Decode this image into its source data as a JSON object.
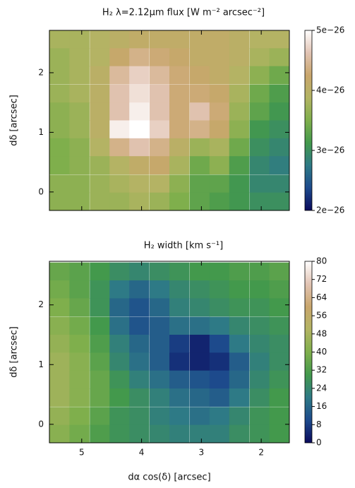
{
  "chart_data": [
    {
      "type": "heatmap",
      "title": "H₂ λ=2.12μm flux [W m⁻² arcsec⁻²]",
      "ylabel": "dδ [arcsec]",
      "show_xticklabels": false,
      "x": [
        5.37,
        5.04,
        4.7,
        4.37,
        4.04,
        3.7,
        3.37,
        3.03,
        2.7,
        2.37,
        2.03,
        1.7
      ],
      "y": [
        2.56,
        2.26,
        1.96,
        1.65,
        1.35,
        1.05,
        0.75,
        0.45,
        0.14,
        -0.16
      ],
      "z": [
        [
          3.8e-26,
          3.8e-26,
          3.9e-26,
          4e-26,
          4.1e-26,
          4.1e-26,
          4.1e-26,
          4.1e-26,
          4.1e-26,
          4e-26,
          3.9e-26,
          3.9e-26
        ],
        [
          3.7e-26,
          3.8e-26,
          3.9e-26,
          4.2e-26,
          4.4e-26,
          4.3e-26,
          4.2e-26,
          4.1e-26,
          4.1e-26,
          4e-26,
          3.8e-26,
          3.7e-26
        ],
        [
          3.7e-26,
          3.8e-26,
          4e-26,
          4.5e-26,
          4.7e-26,
          4.5e-26,
          4.3e-26,
          4.2e-26,
          4.1e-26,
          3.9e-26,
          3.6e-26,
          3.4e-26
        ],
        [
          3.7e-26,
          3.8e-26,
          4e-26,
          4.6e-26,
          4.8e-26,
          4.6e-26,
          4.3e-26,
          4.3e-26,
          4.2e-26,
          3.8e-26,
          3.4e-26,
          3.2e-26
        ],
        [
          3.6e-26,
          3.7e-26,
          4e-26,
          4.6e-26,
          4.9e-26,
          4.6e-26,
          4.3e-26,
          4.6e-26,
          4.3e-26,
          3.7e-26,
          3.3e-26,
          3.1e-26
        ],
        [
          3.6e-26,
          3.7e-26,
          4e-26,
          4.9e-26,
          5e-26,
          4.7e-26,
          4.3e-26,
          4.4e-26,
          4.2e-26,
          3.6e-26,
          3.1e-26,
          3e-26
        ],
        [
          3.5e-26,
          3.6e-26,
          3.9e-26,
          4.4e-26,
          4.6e-26,
          4.4e-26,
          4e-26,
          3.7e-26,
          3.8e-26,
          3.4e-26,
          3e-26,
          2.9e-26
        ],
        [
          3.5e-26,
          3.6e-26,
          3.7e-26,
          3.9e-26,
          4.1e-26,
          4.2e-26,
          3.8e-26,
          3.4e-26,
          3.6e-26,
          3.2e-26,
          2.9e-26,
          2.8e-26
        ],
        [
          3.6e-26,
          3.6e-26,
          3.7e-26,
          3.8e-26,
          3.9e-26,
          3.9e-26,
          3.6e-26,
          3.3e-26,
          3.3e-26,
          3.1e-26,
          2.9e-26,
          2.9e-26
        ],
        [
          3.6e-26,
          3.6e-26,
          3.7e-26,
          3.7e-26,
          3.8e-26,
          3.7e-26,
          3.5e-26,
          3.3e-26,
          3.2e-26,
          3.1e-26,
          3e-26,
          3e-26
        ]
      ],
      "xlim": [
        5.54,
        1.53
      ],
      "ylim": [
        -0.31,
        2.71
      ],
      "xticks": [
        5,
        4,
        3,
        2
      ],
      "yticks": [
        0,
        1,
        2
      ],
      "clim": [
        2e-26,
        5e-26
      ],
      "cticks": [
        {
          "value": 2e-26,
          "label": "2e−26"
        },
        {
          "value": 3e-26,
          "label": "3e−26"
        },
        {
          "value": 4e-26,
          "label": "4e−26"
        },
        {
          "value": 5e-26,
          "label": "5e−26"
        }
      ],
      "colormap": [
        "#0a0a5c",
        "#1d4a8c",
        "#2e7a86",
        "#43994c",
        "#7faf4c",
        "#b3b463",
        "#c9a66c",
        "#e2c4b4",
        "#ffffff"
      ]
    },
    {
      "type": "heatmap",
      "title": "H₂ width [km s⁻¹]",
      "ylabel": "dδ [arcsec]",
      "xlabel": "dα cos(δ) [arcsec]",
      "show_xticklabels": true,
      "x": [
        5.37,
        5.04,
        4.7,
        4.37,
        4.04,
        3.7,
        3.37,
        3.03,
        2.7,
        2.37,
        2.03,
        1.7
      ],
      "y": [
        2.56,
        2.26,
        1.96,
        1.65,
        1.35,
        1.05,
        0.75,
        0.45,
        0.14,
        -0.16
      ],
      "z": [
        [
          36,
          34,
          30,
          26,
          24,
          26,
          28,
          30,
          30,
          32,
          32,
          34
        ],
        [
          38,
          34,
          28,
          20,
          16,
          20,
          24,
          26,
          28,
          30,
          30,
          32
        ],
        [
          40,
          36,
          28,
          16,
          12,
          16,
          22,
          24,
          26,
          28,
          28,
          30
        ],
        [
          42,
          38,
          30,
          18,
          12,
          14,
          18,
          18,
          20,
          24,
          26,
          28
        ],
        [
          44,
          40,
          32,
          22,
          16,
          14,
          8,
          4,
          10,
          20,
          24,
          26
        ],
        [
          46,
          42,
          34,
          24,
          18,
          14,
          6,
          4,
          6,
          14,
          22,
          26
        ],
        [
          46,
          42,
          36,
          28,
          22,
          18,
          14,
          12,
          10,
          16,
          24,
          28
        ],
        [
          46,
          42,
          36,
          30,
          26,
          22,
          18,
          16,
          14,
          20,
          26,
          30
        ],
        [
          44,
          40,
          34,
          28,
          26,
          22,
          20,
          18,
          20,
          24,
          28,
          30
        ],
        [
          42,
          38,
          32,
          28,
          26,
          24,
          22,
          22,
          22,
          26,
          28,
          30
        ]
      ],
      "xlim": [
        5.54,
        1.53
      ],
      "ylim": [
        -0.31,
        2.73
      ],
      "xticks": [
        5,
        4,
        3,
        2
      ],
      "yticks": [
        0,
        1,
        2
      ],
      "clim": [
        0,
        80
      ],
      "cticks": [
        0,
        8,
        16,
        24,
        32,
        40,
        48,
        56,
        64,
        72,
        80
      ],
      "colormap": [
        "#0a0a5c",
        "#1d4a8c",
        "#2e7a86",
        "#43994c",
        "#7faf4c",
        "#b3b463",
        "#c9a66c",
        "#e2c4b4",
        "#ffffff"
      ]
    }
  ]
}
